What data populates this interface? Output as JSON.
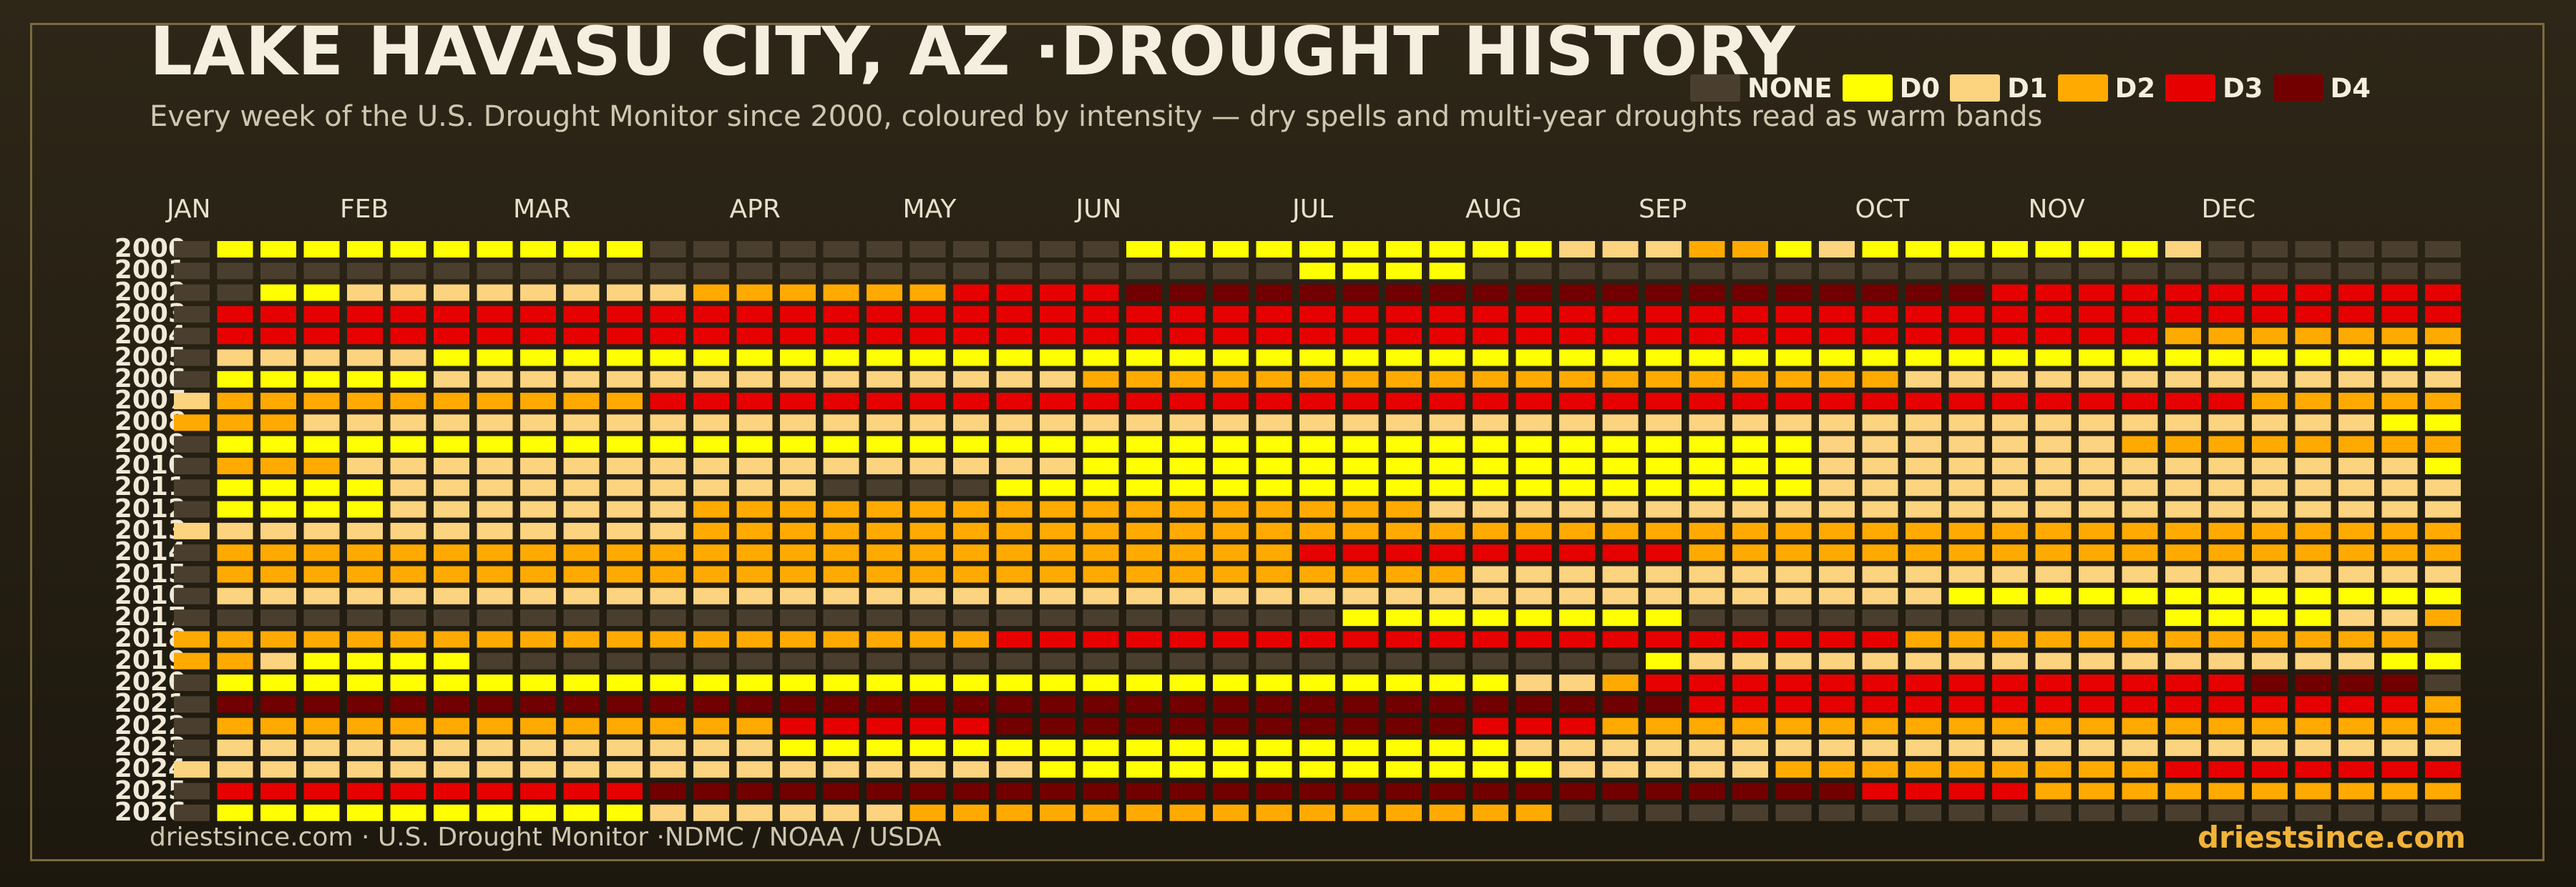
{
  "title": "LAKE HAVASU CITY, AZ ·DROUGHT HISTORY",
  "subtitle": "Every week of the U.S. Drought Monitor since 2000, coloured by intensity — dry spells and multi-year droughts read as warm bands",
  "footer_left": "driestsince.com  · U.S. Drought Monitor ·NDMC / NOAA / USDA",
  "footer_right": "driestsince.com",
  "legend": [
    {
      "label": "NONE",
      "color": "#4a3f2e"
    },
    {
      "label": "D0",
      "color": "#ffff00"
    },
    {
      "label": "D1",
      "color": "#fcd37f"
    },
    {
      "label": "D2",
      "color": "#ffaa00"
    },
    {
      "label": "D3",
      "color": "#e60000"
    },
    {
      "label": "D4",
      "color": "#730000"
    }
  ],
  "chart_data": {
    "type": "heatmap",
    "title": "LAKE HAVASU CITY, AZ ·DROUGHT HISTORY",
    "x_axis": "week of year",
    "weeks_per_year": 53,
    "month_labels": [
      {
        "label": "JAN",
        "week": 1
      },
      {
        "label": "FEB",
        "week": 5
      },
      {
        "label": "MAR",
        "week": 9
      },
      {
        "label": "APR",
        "week": 14
      },
      {
        "label": "MAY",
        "week": 18
      },
      {
        "label": "JUN",
        "week": 22
      },
      {
        "label": "JUL",
        "week": 27
      },
      {
        "label": "AUG",
        "week": 31
      },
      {
        "label": "SEP",
        "week": 35
      },
      {
        "label": "OCT",
        "week": 40
      },
      {
        "label": "NOV",
        "week": 44
      },
      {
        "label": "DEC",
        "week": 48
      }
    ],
    "categories": [
      "NONE",
      "D0",
      "D1",
      "D2",
      "D3",
      "D4"
    ],
    "encoding": "one string per year, one character per week: N=NONE, 0=D0, 1=D1, 2=D2, 3=D3, 4=D4",
    "years": [
      {
        "year": "2000",
        "weeks": "N0000000000NNNNNNNNNNN0000000000111220100000001NNNNNNNN"
      },
      {
        "year": "2001",
        "weeks": "NNNNNNNNNNNNNNNNNNNNNNNNNN0000NNNNNNNNNNNNNNNNNNNNNNNN"
      },
      {
        "year": "2002",
        "weeks": "NN0011111111222222333344444444444444444444333333333333"
      },
      {
        "year": "2003",
        "weeks": "N3333333333333333333333333333333333333333333333333333"
      },
      {
        "year": "2004",
        "weeks": "N3333333333333333333333333333333333333333333332222222"
      },
      {
        "year": "2005",
        "weeks": "N1111100000000000000000000000000000000000000000000000"
      },
      {
        "year": "2006",
        "weeks": "N0000011111111111111122222222222222222221111111111111"
      },
      {
        "year": "2007",
        "weeks": "12222222222333333333333333333333333333333333333322222N"
      },
      {
        "year": "2008",
        "weeks": "22211111111111111111111111111111111111111111111111100"
      },
      {
        "year": "2009",
        "weeks": "N0000000000000000000000000000000000000111111122222222"
      },
      {
        "year": "2010",
        "weeks": "N2221111111111111111100000000000000000111111111111110N"
      },
      {
        "year": "2011",
        "weeks": "N00001111111111NNNN0000000000000000000111111111111111"
      },
      {
        "year": "2012",
        "weeks": "N00001111111222222222222222221111111111111111111111111"
      },
      {
        "year": "2013",
        "weeks": "11111111111122222222222222222222222222222222222222222"
      },
      {
        "year": "2014",
        "weeks": "N2222222222222222222222222333333333222222222222222222"
      },
      {
        "year": "2015",
        "weeks": "N2222222222222222222222222222211111111111111111111111"
      },
      {
        "year": "2016",
        "weeks": "N1111111111111111111111111111111111111111000000000000"
      },
      {
        "year": "2017",
        "weeks": "NNNNNNNNNNNNNNNNNNNNNNNNNNN00000000NNNNNNNNNNN0000112"
      },
      {
        "year": "2018",
        "weeks": "2222222222222222222333333333333333333333222222222222N"
      },
      {
        "year": "2019",
        "weeks": "2210000NNNNNNNNNNNNNNNNNNNNNNNNNNN0111111111111111100"
      },
      {
        "year": "2020",
        "weeks": "N000000000000000000000000000000112333333333333334444"
      },
      {
        "year": "2021",
        "weeks": "N4444444444444444444444444444444444333333333333333332"
      },
      {
        "year": "2022",
        "weeks": "N2222222222222333334444444444433322222222222222222222"
      },
      {
        "year": "2023",
        "weeks": "N1111111111111000000000000000001111111111111111111111"
      },
      {
        "year": "2024",
        "weeks": "11111111111111111111000000000000111112222222223333333"
      },
      {
        "year": "2025",
        "weeks": "N3333333333444444444444444444444444444433332222222222"
      },
      {
        "year": "2026",
        "weeks": "N0000000000111111222222222222222NNNNNNNNNNNNNNNNNNNNNN"
      }
    ]
  }
}
